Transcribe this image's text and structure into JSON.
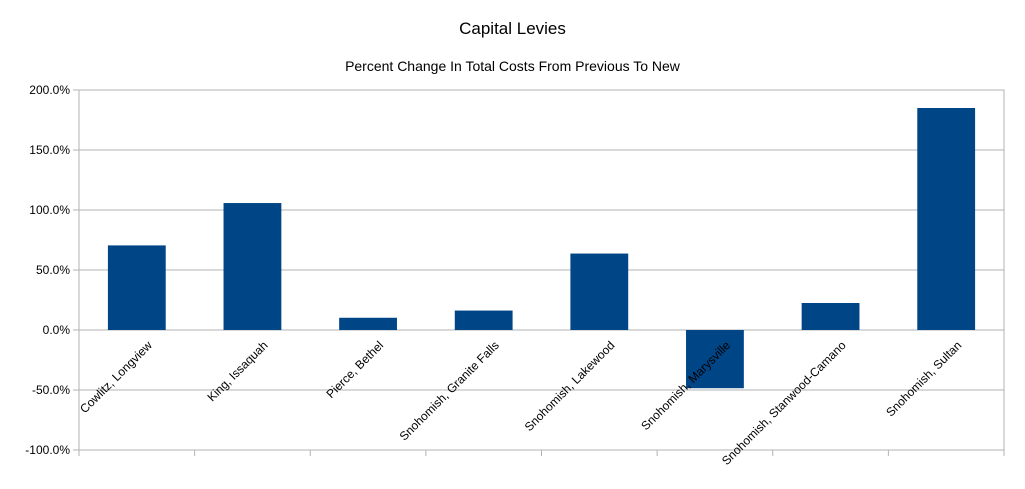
{
  "chart_data": {
    "type": "bar",
    "title": "Capital Levies",
    "subtitle": "Percent Change In Total Costs From Previous To New",
    "xlabel": "",
    "ylabel": "",
    "categories": [
      "Cowlitz, Longview",
      "King, Issaquah",
      "Pierce, Bethel",
      "Snohomish, Granite Falls",
      "Snohomish, Lakewood",
      "Snohomish, Marysville",
      "Snohomish, Stanwood-Camano",
      "Snohomish, Sultan"
    ],
    "values": [
      70.5,
      105.8,
      10.2,
      16.2,
      63.7,
      -48.5,
      22.5,
      185.0
    ],
    "ylim": [
      -100,
      200
    ],
    "yticks": [
      "200.0%",
      "150.0%",
      "100.0%",
      "50.0%",
      "0.0%",
      "-50.0%",
      "-100.0%"
    ],
    "grid": true,
    "bar_color": "#004586"
  }
}
